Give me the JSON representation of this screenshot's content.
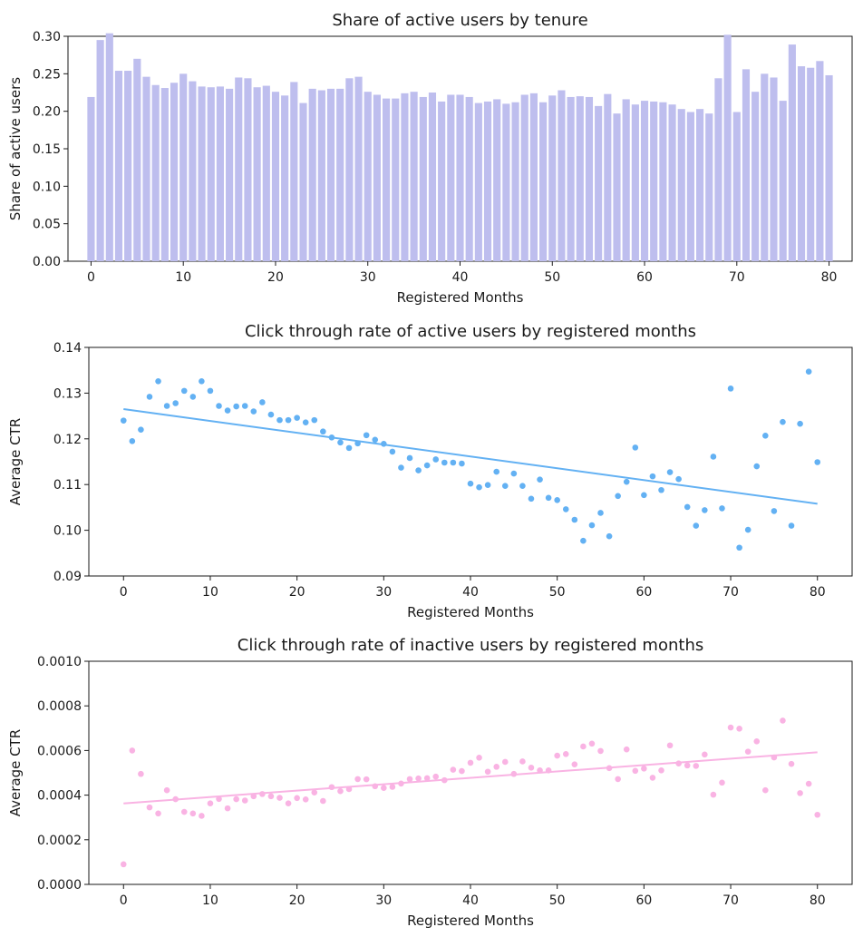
{
  "chart_data": [
    {
      "type": "bar",
      "title": "Share of active users by tenure",
      "xlabel": "Registered Months",
      "ylabel": "Share of active users",
      "xlim": [
        -2.5,
        82.5
      ],
      "ylim": [
        0,
        0.3
      ],
      "xticks": [
        0,
        10,
        20,
        30,
        40,
        50,
        60,
        70,
        80
      ],
      "yticks": [
        "0.00",
        "0.05",
        "0.10",
        "0.15",
        "0.20",
        "0.25",
        "0.30"
      ],
      "color": "#bebeee",
      "x": [
        0,
        1,
        2,
        3,
        4,
        5,
        6,
        7,
        8,
        9,
        10,
        11,
        12,
        13,
        14,
        15,
        16,
        17,
        18,
        19,
        20,
        21,
        22,
        23,
        24,
        25,
        26,
        27,
        28,
        29,
        30,
        31,
        32,
        33,
        34,
        35,
        36,
        37,
        38,
        39,
        40,
        41,
        42,
        43,
        44,
        45,
        46,
        47,
        48,
        49,
        50,
        51,
        52,
        53,
        54,
        55,
        56,
        57,
        58,
        59,
        60,
        61,
        62,
        63,
        64,
        65,
        66,
        67,
        68,
        69,
        70,
        71,
        72,
        73,
        74,
        75,
        76,
        77,
        78,
        79,
        80
      ],
      "values": [
        0.219,
        0.295,
        0.304,
        0.254,
        0.254,
        0.27,
        0.246,
        0.235,
        0.231,
        0.238,
        0.25,
        0.24,
        0.233,
        0.232,
        0.233,
        0.23,
        0.245,
        0.244,
        0.232,
        0.234,
        0.226,
        0.221,
        0.239,
        0.211,
        0.23,
        0.228,
        0.23,
        0.23,
        0.244,
        0.246,
        0.226,
        0.222,
        0.217,
        0.217,
        0.224,
        0.226,
        0.219,
        0.225,
        0.213,
        0.222,
        0.222,
        0.219,
        0.211,
        0.213,
        0.216,
        0.21,
        0.212,
        0.222,
        0.224,
        0.212,
        0.221,
        0.228,
        0.219,
        0.22,
        0.219,
        0.207,
        0.223,
        0.197,
        0.216,
        0.209,
        0.214,
        0.213,
        0.212,
        0.209,
        0.203,
        0.199,
        0.203,
        0.197,
        0.244,
        0.302,
        0.199,
        0.256,
        0.226,
        0.25,
        0.245,
        0.214,
        0.289,
        0.26,
        0.258,
        0.267,
        0.248
      ]
    },
    {
      "type": "scatter",
      "title": "Click through rate of active users by registered months",
      "xlabel": "Registered Months",
      "ylabel": "Average CTR",
      "xlim": [
        -4,
        84
      ],
      "ylim": [
        0.09,
        0.14
      ],
      "xticks": [
        0,
        10,
        20,
        30,
        40,
        50,
        60,
        70,
        80
      ],
      "yticks": [
        "0.09",
        "0.10",
        "0.11",
        "0.12",
        "0.13",
        "0.14"
      ],
      "color": "#63b1f3",
      "x": [
        0,
        1,
        2,
        3,
        4,
        5,
        6,
        7,
        8,
        9,
        10,
        11,
        12,
        13,
        14,
        15,
        16,
        17,
        18,
        19,
        20,
        21,
        22,
        23,
        24,
        25,
        26,
        27,
        28,
        29,
        30,
        31,
        32,
        33,
        34,
        35,
        36,
        37,
        38,
        39,
        40,
        41,
        42,
        43,
        44,
        45,
        46,
        47,
        48,
        49,
        50,
        51,
        52,
        53,
        54,
        55,
        56,
        57,
        58,
        59,
        60,
        61,
        62,
        63,
        64,
        65,
        66,
        67,
        68,
        69,
        70,
        71,
        72,
        73,
        74,
        75,
        76,
        77,
        78,
        79,
        80
      ],
      "y": [
        0.124,
        0.1195,
        0.122,
        0.1292,
        0.1326,
        0.1272,
        0.1278,
        0.1305,
        0.1292,
        0.1326,
        0.1305,
        0.1272,
        0.1262,
        0.1271,
        0.1272,
        0.126,
        0.128,
        0.1253,
        0.1241,
        0.1241,
        0.1246,
        0.1236,
        0.1241,
        0.1216,
        0.1203,
        0.1192,
        0.118,
        0.119,
        0.1208,
        0.1198,
        0.1189,
        0.1172,
        0.1137,
        0.1158,
        0.1131,
        0.1142,
        0.1155,
        0.1148,
        0.1148,
        0.1146,
        0.1102,
        0.1094,
        0.1099,
        0.1128,
        0.1097,
        0.1124,
        0.1097,
        0.1069,
        0.1111,
        0.1071,
        0.1066,
        0.1046,
        0.1023,
        0.0977,
        0.1011,
        0.1038,
        0.0987,
        0.1075,
        0.1106,
        0.1181,
        0.1077,
        0.1118,
        0.1088,
        0.1127,
        0.1112,
        0.1051,
        0.101,
        0.1044,
        0.1161,
        0.1048,
        0.131,
        0.0962,
        0.1001,
        0.114,
        0.1207,
        0.1042,
        0.1237,
        0.101,
        0.1233,
        0.1347,
        0.1149
      ],
      "trend": {
        "x": [
          0,
          80
        ],
        "y": [
          0.1265,
          0.1058
        ]
      }
    },
    {
      "type": "scatter",
      "title": "Click through rate of inactive users by registered months",
      "xlabel": "Registered Months",
      "ylabel": "Average CTR",
      "xlim": [
        -4,
        84
      ],
      "ylim": [
        0,
        0.001
      ],
      "xticks": [
        0,
        10,
        20,
        30,
        40,
        50,
        60,
        70,
        80
      ],
      "yticks": [
        "0.0000",
        "0.0002",
        "0.0004",
        "0.0006",
        "0.0008",
        "0.0010"
      ],
      "color": "#f9b3e3",
      "x": [
        0,
        1,
        2,
        3,
        4,
        5,
        6,
        7,
        8,
        9,
        10,
        11,
        12,
        13,
        14,
        15,
        16,
        17,
        18,
        19,
        20,
        21,
        22,
        23,
        24,
        25,
        26,
        27,
        28,
        29,
        30,
        31,
        32,
        33,
        34,
        35,
        36,
        37,
        38,
        39,
        40,
        41,
        42,
        43,
        44,
        45,
        46,
        47,
        48,
        49,
        50,
        51,
        52,
        53,
        54,
        55,
        56,
        57,
        58,
        59,
        60,
        61,
        62,
        63,
        64,
        65,
        66,
        67,
        68,
        69,
        70,
        71,
        72,
        73,
        74,
        75,
        76,
        77,
        78,
        79,
        80
      ],
      "y": [
        9e-05,
        0.0006,
        0.000495,
        0.000345,
        0.000318,
        0.000422,
        0.000382,
        0.000325,
        0.000318,
        0.000307,
        0.000363,
        0.000383,
        0.000341,
        0.000382,
        0.000376,
        0.000395,
        0.000405,
        0.000395,
        0.000388,
        0.000363,
        0.000387,
        0.000381,
        0.000412,
        0.000374,
        0.000436,
        0.000418,
        0.000427,
        0.000472,
        0.000471,
        0.00044,
        0.000432,
        0.000437,
        0.000452,
        0.000472,
        0.000475,
        0.000476,
        0.000483,
        0.000467,
        0.000514,
        0.000508,
        0.000545,
        0.000568,
        0.000505,
        0.000527,
        0.000549,
        0.000495,
        0.000551,
        0.000523,
        0.000511,
        0.000511,
        0.000577,
        0.000584,
        0.000538,
        0.000618,
        0.000631,
        0.000598,
        0.000521,
        0.000472,
        0.000605,
        0.000509,
        0.000519,
        0.000478,
        0.000511,
        0.000623,
        0.000542,
        0.000533,
        0.000531,
        0.000582,
        0.000402,
        0.000456,
        0.000703,
        0.000698,
        0.000595,
        0.000641,
        0.000422,
        0.000569,
        0.000734,
        0.00054,
        0.000409,
        0.000451,
        0.000312
      ],
      "trend": {
        "x": [
          0,
          80
        ],
        "y": [
          0.000363,
          0.000592
        ]
      }
    }
  ]
}
